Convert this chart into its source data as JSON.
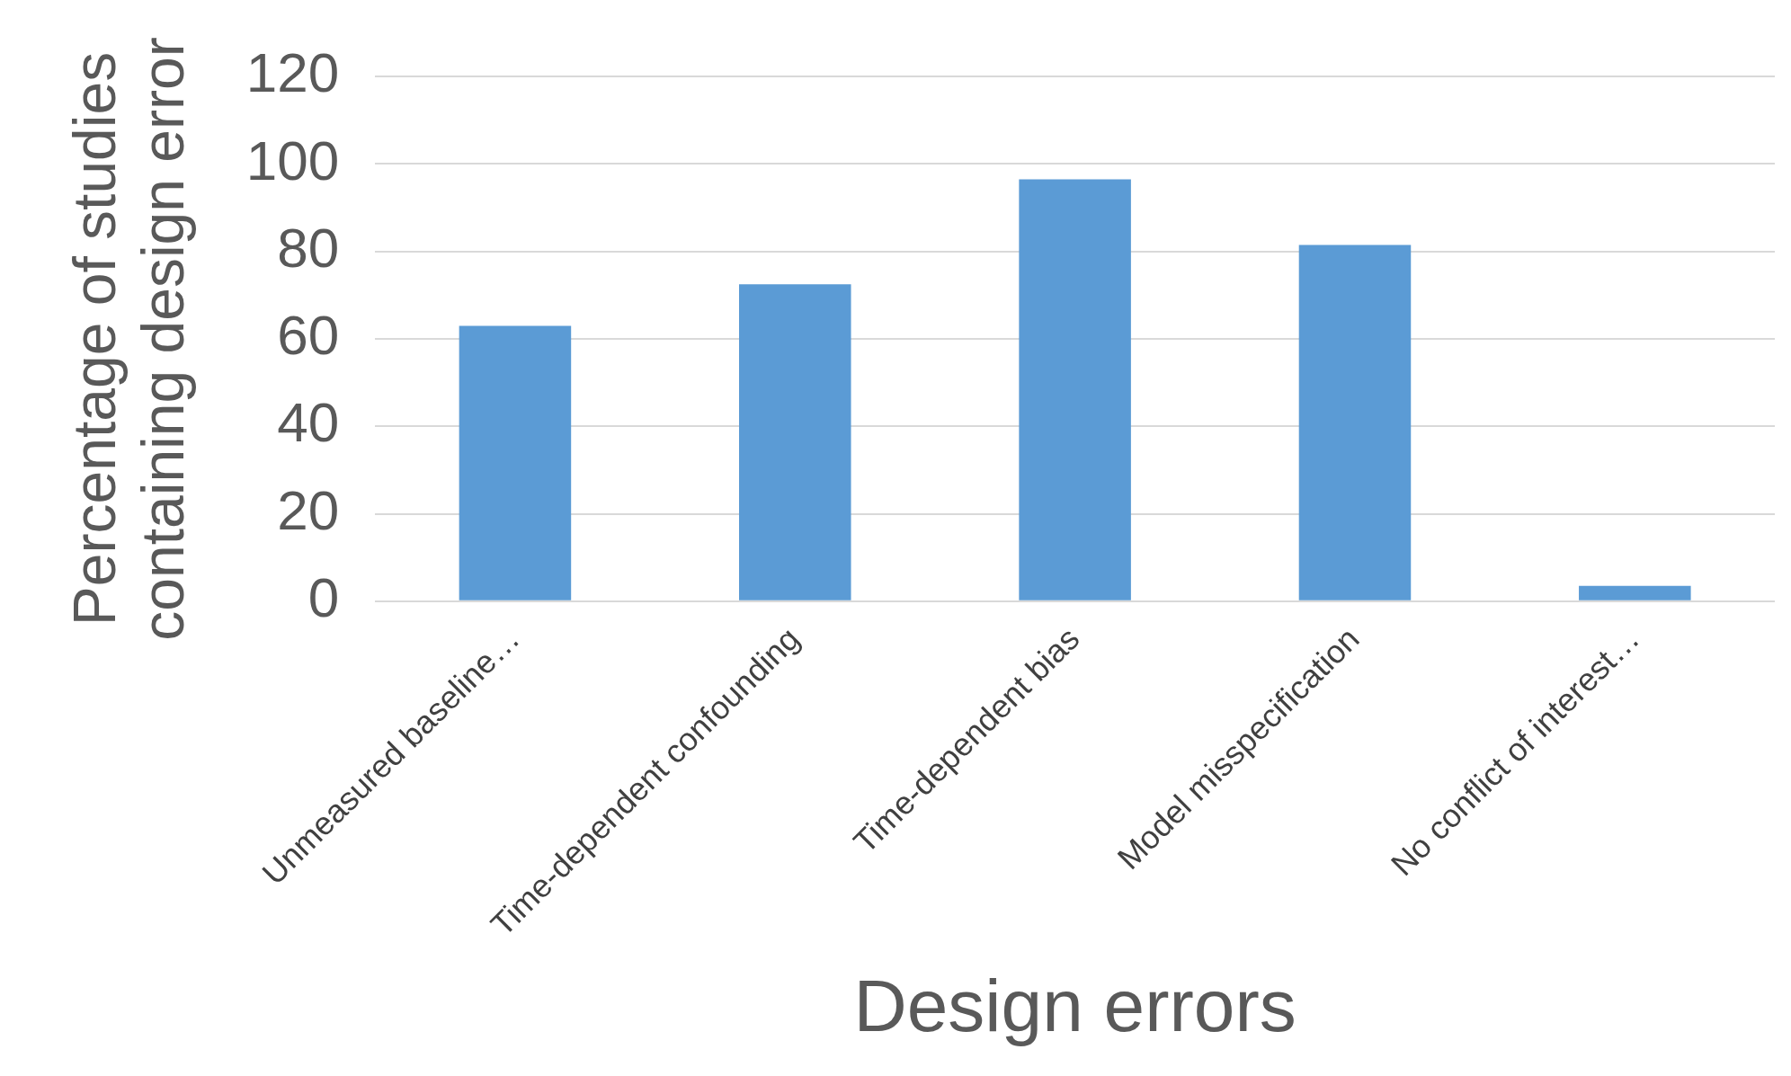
{
  "chart_data": {
    "type": "bar",
    "xlabel": "Design errors",
    "ylabel": "Percentage of studies containing design error",
    "categories": [
      "Unmeasured baseline…",
      "Time-dependent confounding",
      "Time-dependent bias",
      "Model misspecification",
      "No conflict of interest…"
    ],
    "values": [
      63,
      72.5,
      96.5,
      81.5,
      3.5
    ],
    "color": "#5b9bd5",
    "ylim": [
      0,
      120
    ],
    "yticks": [
      0,
      20,
      40,
      60,
      80,
      100,
      120
    ],
    "grid": "y",
    "legend": false
  }
}
